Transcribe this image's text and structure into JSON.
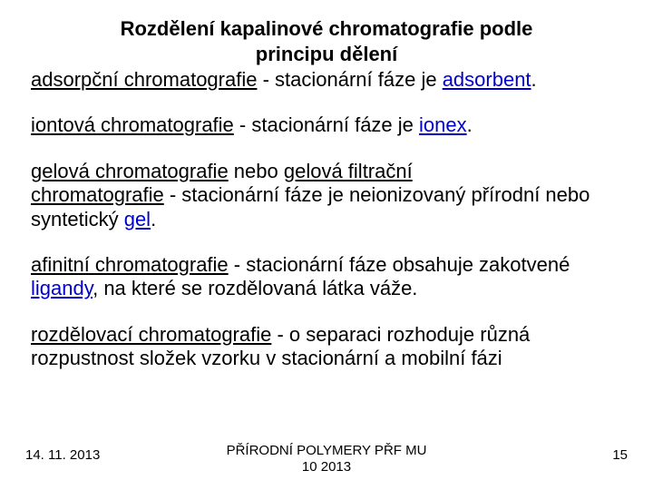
{
  "title_line1": "Rozdělení kapalinové chromatografie podle",
  "title_line2": "principu dělení",
  "p1": {
    "lead": "adsorpční chromatografie",
    "mid": " - stacionární fáze je ",
    "link": "adsorbent",
    "tail": "."
  },
  "p2": {
    "lead": "iontová chromatografie",
    "mid": " - stacionární fáze je ",
    "link": "ionex",
    "tail": "."
  },
  "p3": {
    "lead1": "gelová chromatografie",
    "mid1": " nebo ",
    "lead2": "gelová filtrační",
    "lead3": "chromatografie",
    "mid2": " - stacionární fáze je neionizovaný přírodní nebo syntetický ",
    "link": "gel",
    "tail": "."
  },
  "p4": {
    "lead": "afinitní chromatografie",
    "mid1": " - stacionární fáze obsahuje zakotvené ",
    "link": "ligandy",
    "mid2": ", na které se rozdělovaná látka váže."
  },
  "p5": {
    "lead": "rozdělovací chromatografie",
    "rest": " - o separaci rozhoduje různá rozpustnost složek vzorku v stacionární a mobilní fázi"
  },
  "footer": {
    "date": "14. 11. 2013",
    "center1": "PŘÍRODNÍ POLYMERY PŘF MU",
    "center2": "10 2013",
    "page": "15"
  },
  "colors": {
    "background": "#ffffff",
    "text": "#000000",
    "link": "#0000cc"
  },
  "font": {
    "title_size_pt": 22,
    "body_size_pt": 22,
    "footer_size_pt": 15,
    "family": "Arial"
  }
}
